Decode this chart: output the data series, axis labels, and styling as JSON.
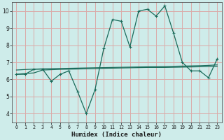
{
  "xlabel": "Humidex (Indice chaleur)",
  "x_values": [
    0,
    1,
    2,
    3,
    4,
    5,
    6,
    7,
    8,
    9,
    10,
    11,
    12,
    13,
    14,
    15,
    16,
    17,
    18,
    19,
    20,
    21,
    22,
    23
  ],
  "y_main": [
    6.3,
    6.3,
    6.6,
    6.6,
    5.9,
    6.3,
    6.5,
    5.3,
    4.0,
    5.4,
    7.8,
    9.5,
    9.4,
    7.9,
    10.0,
    10.1,
    9.7,
    10.3,
    8.7,
    7.0,
    6.5,
    6.5,
    6.1,
    7.2
  ],
  "y_line1": [
    6.3,
    6.35,
    6.38,
    6.55,
    6.57,
    6.59,
    6.6,
    6.61,
    6.62,
    6.63,
    6.65,
    6.66,
    6.67,
    6.68,
    6.69,
    6.7,
    6.7,
    6.7,
    6.71,
    6.72,
    6.73,
    6.74,
    6.75,
    6.76
  ],
  "y_line2": [
    6.55,
    6.58,
    6.6,
    6.62,
    6.63,
    6.64,
    6.65,
    6.66,
    6.67,
    6.68,
    6.69,
    6.7,
    6.71,
    6.72,
    6.73,
    6.74,
    6.75,
    6.76,
    6.77,
    6.78,
    6.79,
    6.8,
    6.82,
    6.85
  ],
  "line_color": "#1a6b5a",
  "bg_color": "#ceecea",
  "grid_color": "#dbaaa8",
  "ylim": [
    3.5,
    10.5
  ],
  "xlim": [
    -0.5,
    23.5
  ],
  "yticks": [
    4,
    5,
    6,
    7,
    8,
    9,
    10
  ],
  "xticks": [
    0,
    1,
    2,
    3,
    4,
    5,
    6,
    7,
    8,
    9,
    10,
    11,
    12,
    13,
    14,
    15,
    16,
    17,
    18,
    19,
    20,
    21,
    22,
    23
  ]
}
